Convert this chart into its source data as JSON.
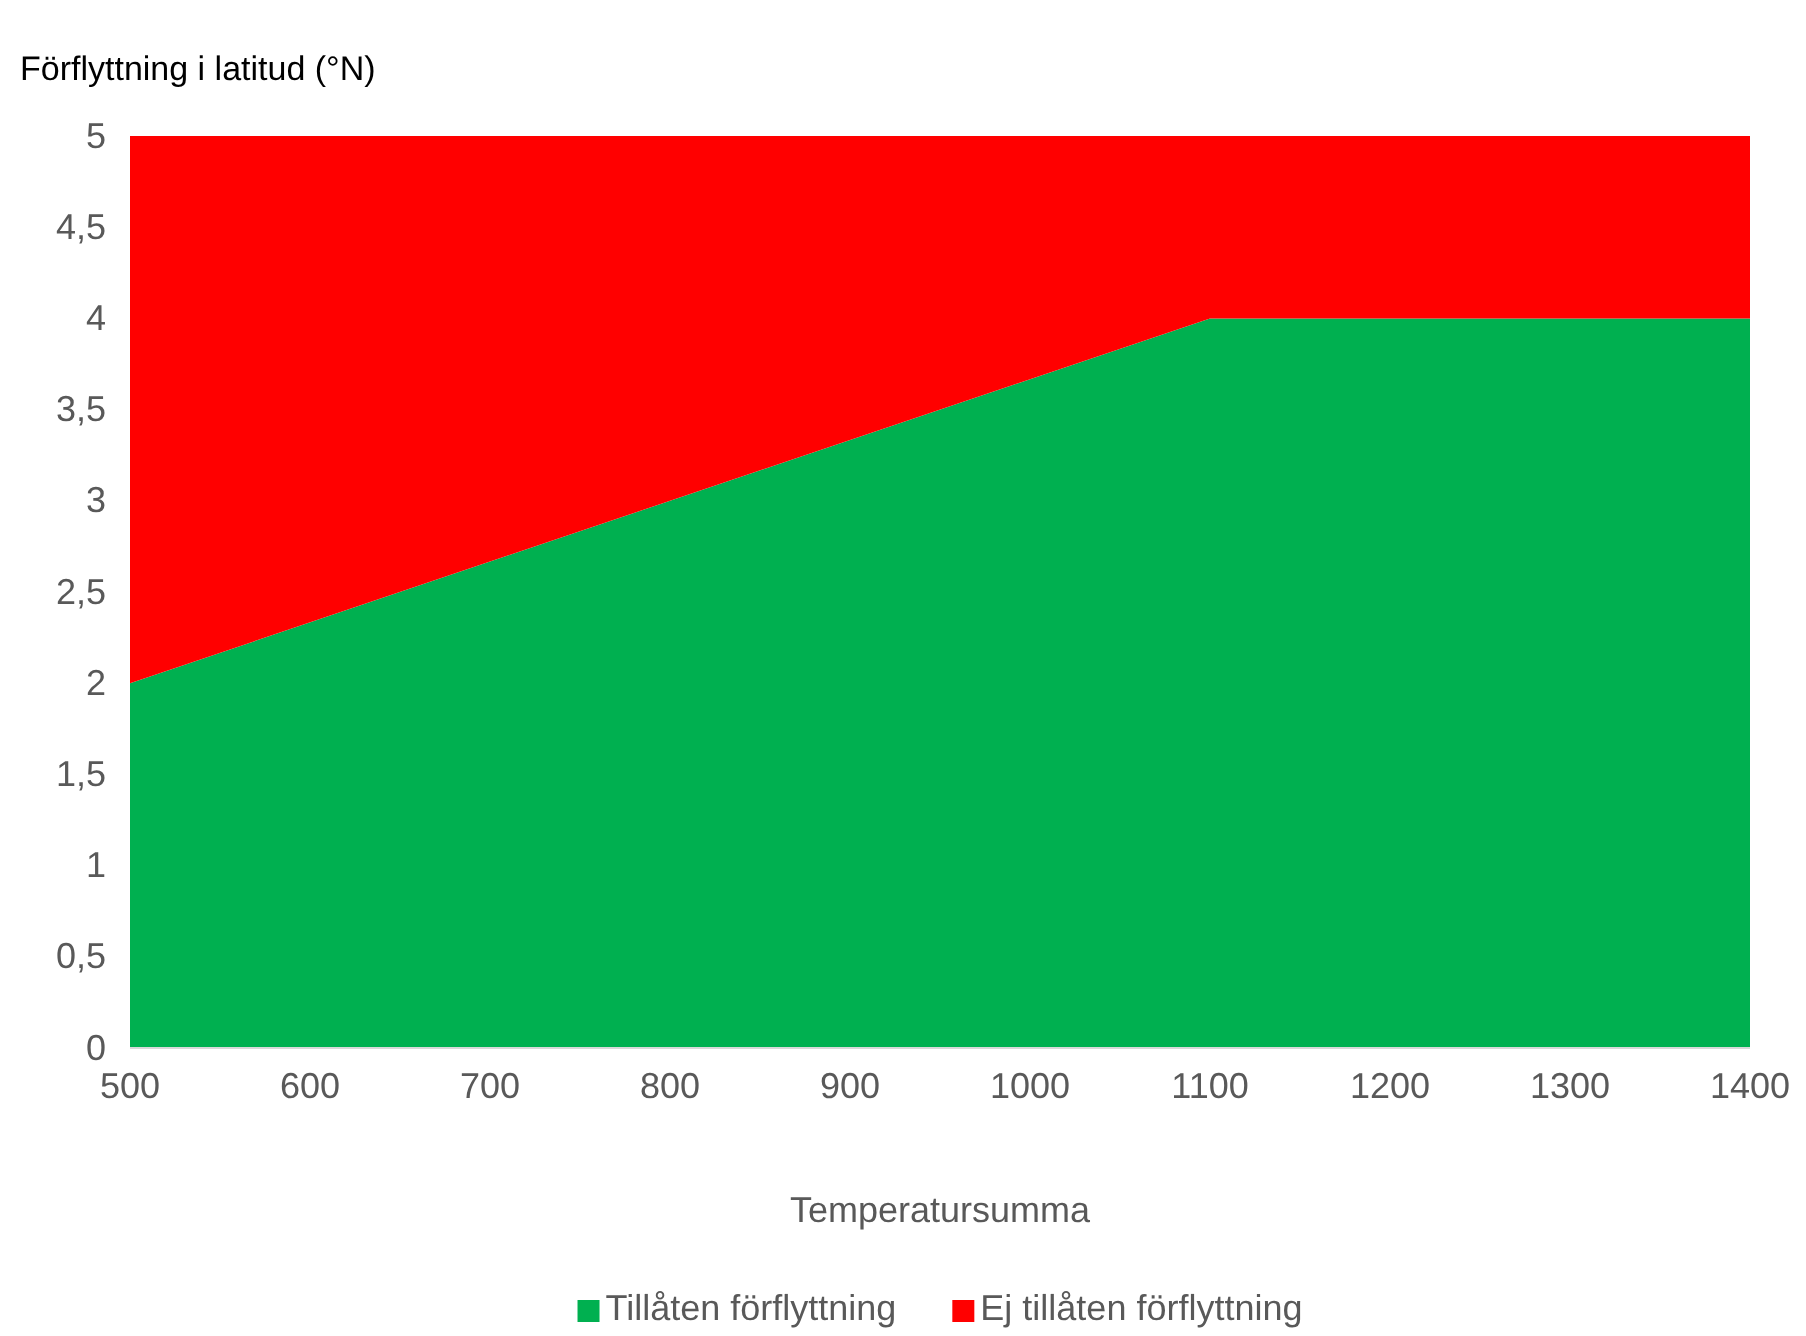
{
  "chart_data": {
    "type": "area",
    "stacked": true,
    "ylabel": "Förflyttning i latitud (°N)",
    "xlabel": "Temperatursumma",
    "x": [
      500,
      1100,
      1400
    ],
    "series": [
      {
        "name": "Tillåten förflyttning",
        "color": "#00b050",
        "values": [
          2,
          4,
          4
        ]
      },
      {
        "name": "Ej tillåten förflyttning",
        "color": "#ff0000",
        "values": [
          3,
          1,
          1
        ]
      }
    ],
    "xlim": [
      500,
      1400
    ],
    "xticks": [
      500,
      600,
      700,
      800,
      900,
      1000,
      1100,
      1200,
      1300,
      1400
    ],
    "ylim": [
      0,
      5
    ],
    "yticks": [
      0,
      {
        "value": 0.5,
        "label": "0,5"
      },
      1,
      {
        "value": 1.5,
        "label": "1,5"
      },
      2,
      {
        "value": 2.5,
        "label": "2,5"
      },
      3,
      {
        "value": 3.5,
        "label": "3,5"
      },
      4,
      {
        "value": 4.5,
        "label": "4,5"
      },
      5
    ],
    "grid": false,
    "legend": "bottom"
  }
}
